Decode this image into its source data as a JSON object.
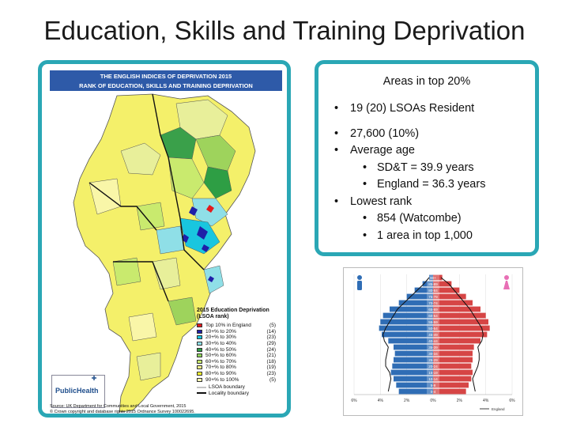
{
  "slide": {
    "title": "Education, Skills and Training Deprivation"
  },
  "map": {
    "header_line1": "THE ENGLISH INDICES OF DEPRIVATION 2015",
    "header_line2": "RANK OF EDUCATION, SKILLS AND TRAINING DEPRIVATION",
    "legend_title_line1": "2015 Education Deprivation",
    "legend_title_line2": "(LSOA rank)",
    "legend": [
      {
        "label": "Top 10% in England",
        "count": "(5)",
        "color": "#e31a1c"
      },
      {
        "label": "10+% to   20%",
        "count": "(14)",
        "color": "#1f1fa8"
      },
      {
        "label": "20+% to   30%",
        "count": "(23)",
        "color": "#19c6df"
      },
      {
        "label": "30+% to   40%",
        "count": "(29)",
        "color": "#8fdfe7"
      },
      {
        "label": "40+% to   50%",
        "count": "(24)",
        "color": "#2e9e44"
      },
      {
        "label": "50+% to   60%",
        "count": "(21)",
        "color": "#8fd45a"
      },
      {
        "label": "60+% to   70%",
        "count": "(18)",
        "color": "#c9ea6e"
      },
      {
        "label": "70+% to   80%",
        "count": "(19)",
        "color": "#f1f28a"
      },
      {
        "label": "80+% to   90%",
        "count": "(23)",
        "color": "#f7f730"
      },
      {
        "label": "90+% to 100%",
        "count": "(5)",
        "color": "#ffffb3"
      }
    ],
    "lsoa_boundary": "LSOA boundary",
    "locality_boundary": "Locality boundary",
    "logo_text": "PublicHealth",
    "source_line1": "Source: UK Department for Communities and Local Government, 2015",
    "source_line2": "© Crown copyright and database rights 2015 Ordnance Survey 100022695."
  },
  "info": {
    "heading": "Areas in top 20%",
    "items": [
      {
        "level": 1,
        "text": "19 (20) LSOAs Resident"
      },
      {
        "level": 1,
        "text": "27,600 (10%)",
        "gap_before": true
      },
      {
        "level": 1,
        "text": "Average age"
      },
      {
        "level": 2,
        "text": "SD&T = 39.9 years"
      },
      {
        "level": 2,
        "text": "England = 36.3 years"
      },
      {
        "level": 1,
        "text": "Lowest rank"
      },
      {
        "level": 2,
        "text": "854 (Watcombe)"
      },
      {
        "level": 2,
        "text": "1 area in top 1,000"
      }
    ]
  },
  "pyramid": {
    "male_color": "#2f6db5",
    "female_color": "#d64545",
    "male_icon_color": "#2f6db5",
    "female_icon_color": "#e86fb5",
    "legend_label": "England",
    "age_bands": [
      "90+",
      "85-89",
      "80-84",
      "75-79",
      "70-74",
      "65-69",
      "60-64",
      "55-59",
      "50-54",
      "45-49",
      "40-44",
      "35-39",
      "30-34",
      "25-29",
      "20-24",
      "15-19",
      "10-14",
      "5-9",
      "0-4"
    ],
    "male": [
      0.3,
      0.8,
      1.4,
      2.0,
      2.6,
      3.3,
      3.8,
      4.0,
      4.1,
      3.9,
      3.4,
      3.0,
      2.9,
      3.0,
      3.1,
      3.2,
      3.0,
      2.8,
      2.6
    ],
    "female": [
      0.7,
      1.4,
      2.0,
      2.5,
      3.0,
      3.6,
      4.0,
      4.2,
      4.3,
      4.1,
      3.6,
      3.1,
      3.0,
      3.0,
      2.9,
      3.0,
      2.9,
      2.7,
      2.5
    ],
    "england_male": [
      0.3,
      0.7,
      1.2,
      1.7,
      2.2,
      2.7,
      3.0,
      3.3,
      3.6,
      3.8,
      3.7,
      3.4,
      3.5,
      3.6,
      3.6,
      3.3,
      3.2,
      3.3,
      3.4
    ],
    "england_female": [
      0.6,
      1.2,
      1.6,
      2.0,
      2.4,
      2.8,
      3.1,
      3.4,
      3.7,
      3.8,
      3.7,
      3.4,
      3.5,
      3.5,
      3.4,
      3.2,
      3.0,
      3.1,
      3.2
    ],
    "x_ticks": [
      "6%",
      "4%",
      "2%",
      "0%",
      "2%",
      "4%",
      "6%"
    ],
    "x_max": 6
  }
}
